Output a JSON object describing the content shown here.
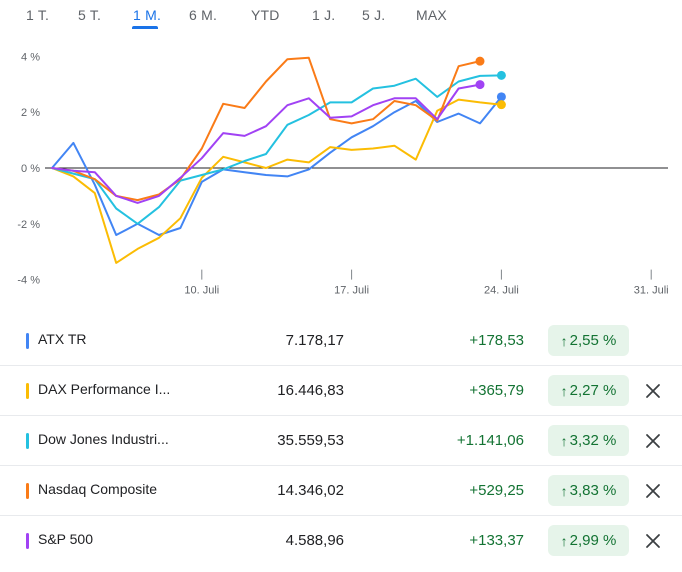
{
  "tabs": [
    {
      "label": "1 T."
    },
    {
      "label": "5 T."
    },
    {
      "label": "1 M."
    },
    {
      "label": "6 M."
    },
    {
      "label": "YTD"
    },
    {
      "label": "1 J."
    },
    {
      "label": "5 J."
    },
    {
      "label": "MAX"
    }
  ],
  "active_tab": "1 M.",
  "chart_data": {
    "type": "line",
    "title": "",
    "ylim": [
      -4,
      4
    ],
    "yticks": [
      "4 %",
      "2 %",
      "0 %",
      "-2 %",
      "-4 %"
    ],
    "ytick_values": [
      4,
      2,
      0,
      -2,
      -4
    ],
    "xticks": [
      "10. Juli",
      "17. Juli",
      "24. Juli",
      "31. Juli"
    ],
    "xtick_indices": [
      7,
      14,
      21,
      28
    ],
    "baseline": 0,
    "series": [
      {
        "name": "ATX TR",
        "color": "#4285f4",
        "values": [
          0,
          0.9,
          -0.6,
          -2.4,
          -2.0,
          -2.4,
          -2.15,
          -0.5,
          -0.05,
          -0.15,
          -0.25,
          -0.3,
          -0.05,
          0.55,
          1.1,
          1.5,
          2.0,
          2.4,
          1.65,
          1.95,
          1.6,
          2.55
        ]
      },
      {
        "name": "DAX Performance I...",
        "color": "#fbbc04",
        "values": [
          0,
          -0.3,
          -0.9,
          -3.4,
          -2.9,
          -2.5,
          -1.8,
          -0.35,
          0.4,
          0.2,
          0.0,
          0.3,
          0.2,
          0.75,
          0.65,
          0.7,
          0.8,
          0.3,
          2.05,
          2.45,
          2.35,
          2.27
        ]
      },
      {
        "name": "Dow Jones Industri...",
        "color": "#24c1e0",
        "values": [
          0,
          -0.2,
          -0.4,
          -1.45,
          -2.0,
          -1.4,
          -0.45,
          -0.25,
          -0.05,
          0.25,
          0.5,
          1.55,
          1.9,
          2.35,
          2.35,
          2.85,
          2.95,
          3.2,
          2.55,
          3.1,
          3.3,
          3.32
        ]
      },
      {
        "name": "Nasdaq Composite",
        "color": "#fa7b17",
        "values": [
          0,
          -0.1,
          -0.4,
          -1.0,
          -1.15,
          -0.95,
          -0.4,
          0.7,
          2.3,
          2.15,
          3.1,
          3.9,
          3.95,
          1.75,
          1.6,
          1.75,
          2.4,
          2.25,
          1.7,
          3.65,
          3.83
        ]
      },
      {
        "name": "S&P 500",
        "color": "#a142f4",
        "values": [
          0,
          -0.1,
          -0.15,
          -1.0,
          -1.25,
          -1.0,
          -0.35,
          0.35,
          1.25,
          1.15,
          1.5,
          2.25,
          2.5,
          1.8,
          1.85,
          2.25,
          2.5,
          2.5,
          1.75,
          2.85,
          2.99
        ]
      }
    ]
  },
  "rows": [
    {
      "name": "ATX TR",
      "price": "7.178,17",
      "change": "+178,53",
      "pct": "2,55 %",
      "color": "#4285f4",
      "removable": false
    },
    {
      "name": "DAX Performance I...",
      "price": "16.446,83",
      "change": "+365,79",
      "pct": "2,27 %",
      "color": "#fbbc04",
      "removable": true
    },
    {
      "name": "Dow Jones Industri...",
      "price": "35.559,53",
      "change": "+1.141,06",
      "pct": "3,32 %",
      "color": "#24c1e0",
      "removable": true
    },
    {
      "name": "Nasdaq Composite",
      "price": "14.346,02",
      "change": "+529,25",
      "pct": "3,83 %",
      "color": "#fa7b17",
      "removable": true
    },
    {
      "name": "S&P 500",
      "price": "4.588,96",
      "change": "+133,37",
      "pct": "2,99 %",
      "color": "#a142f4",
      "removable": true
    }
  ],
  "icons": {
    "up": "arrow-up-icon",
    "remove": "close-icon"
  },
  "colors": {
    "positive": "#137333",
    "positive_bg": "#e6f4ea",
    "accent": "#1a73e8"
  }
}
